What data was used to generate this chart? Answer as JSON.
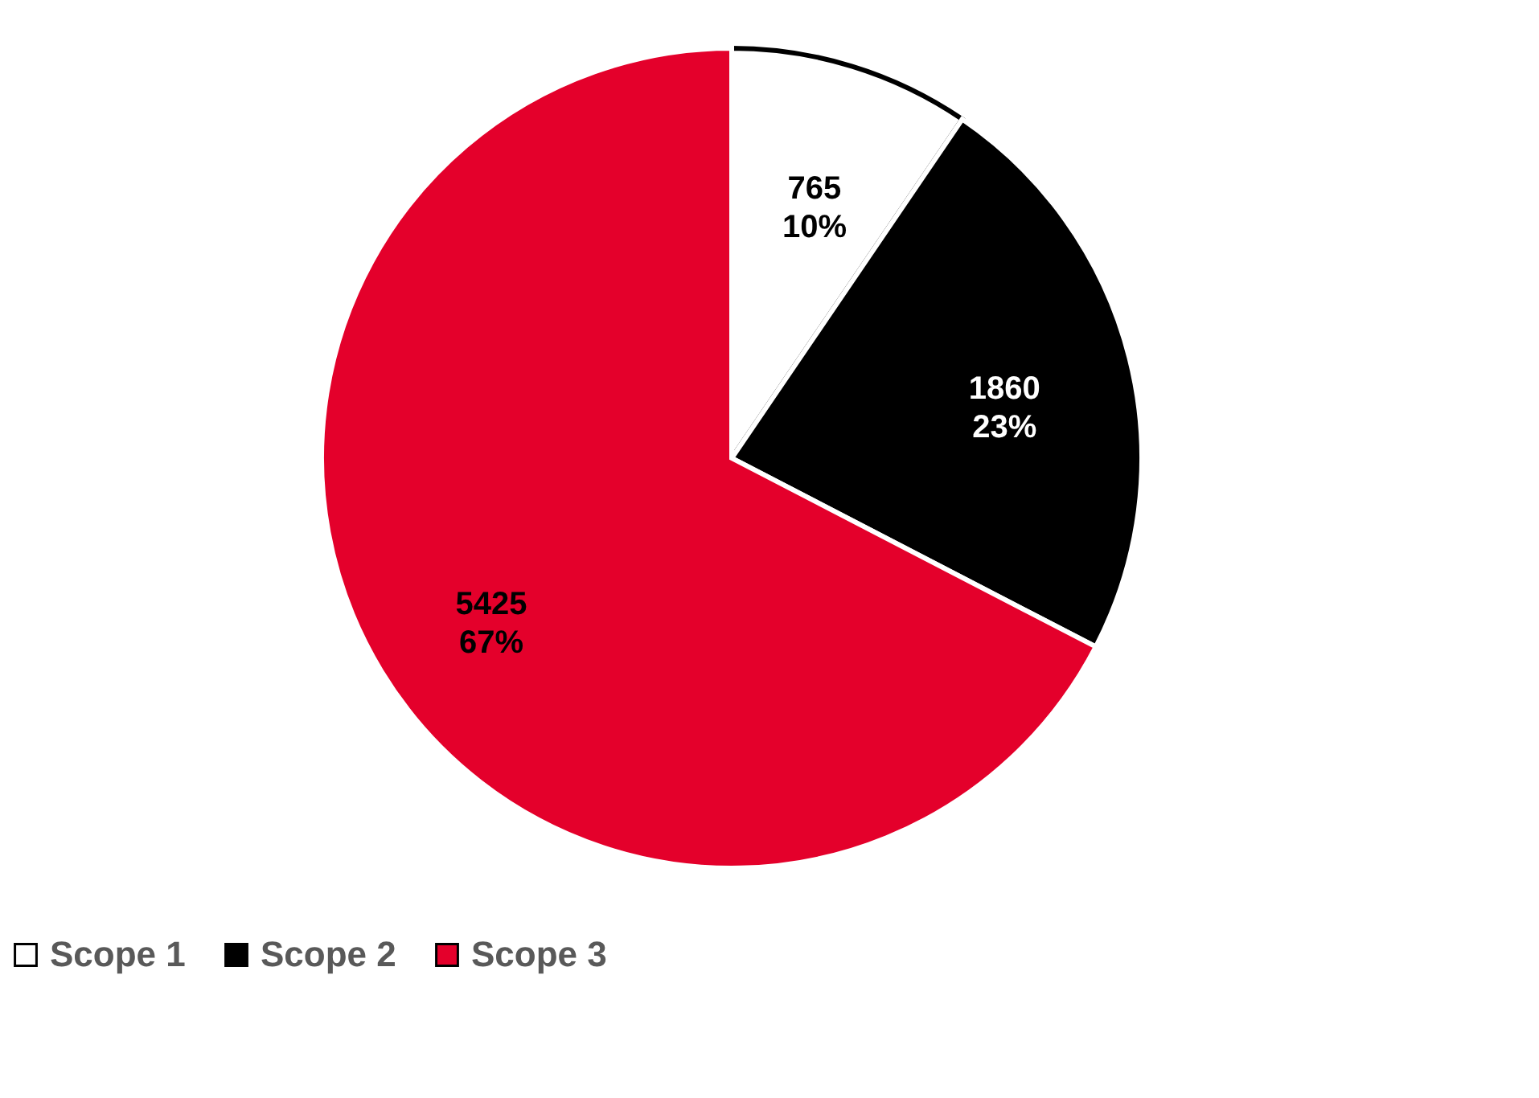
{
  "chart_data": {
    "type": "pie",
    "categories": [
      "Scope 1",
      "Scope 2",
      "Scope 3"
    ],
    "values": [
      765,
      1860,
      5425
    ],
    "colors": [
      "#ffffff",
      "#000000",
      "#e4002b"
    ],
    "value_labels": [
      "765\n10%",
      "1860\n23%",
      "5425\n67%"
    ],
    "legend": "bottom"
  }
}
